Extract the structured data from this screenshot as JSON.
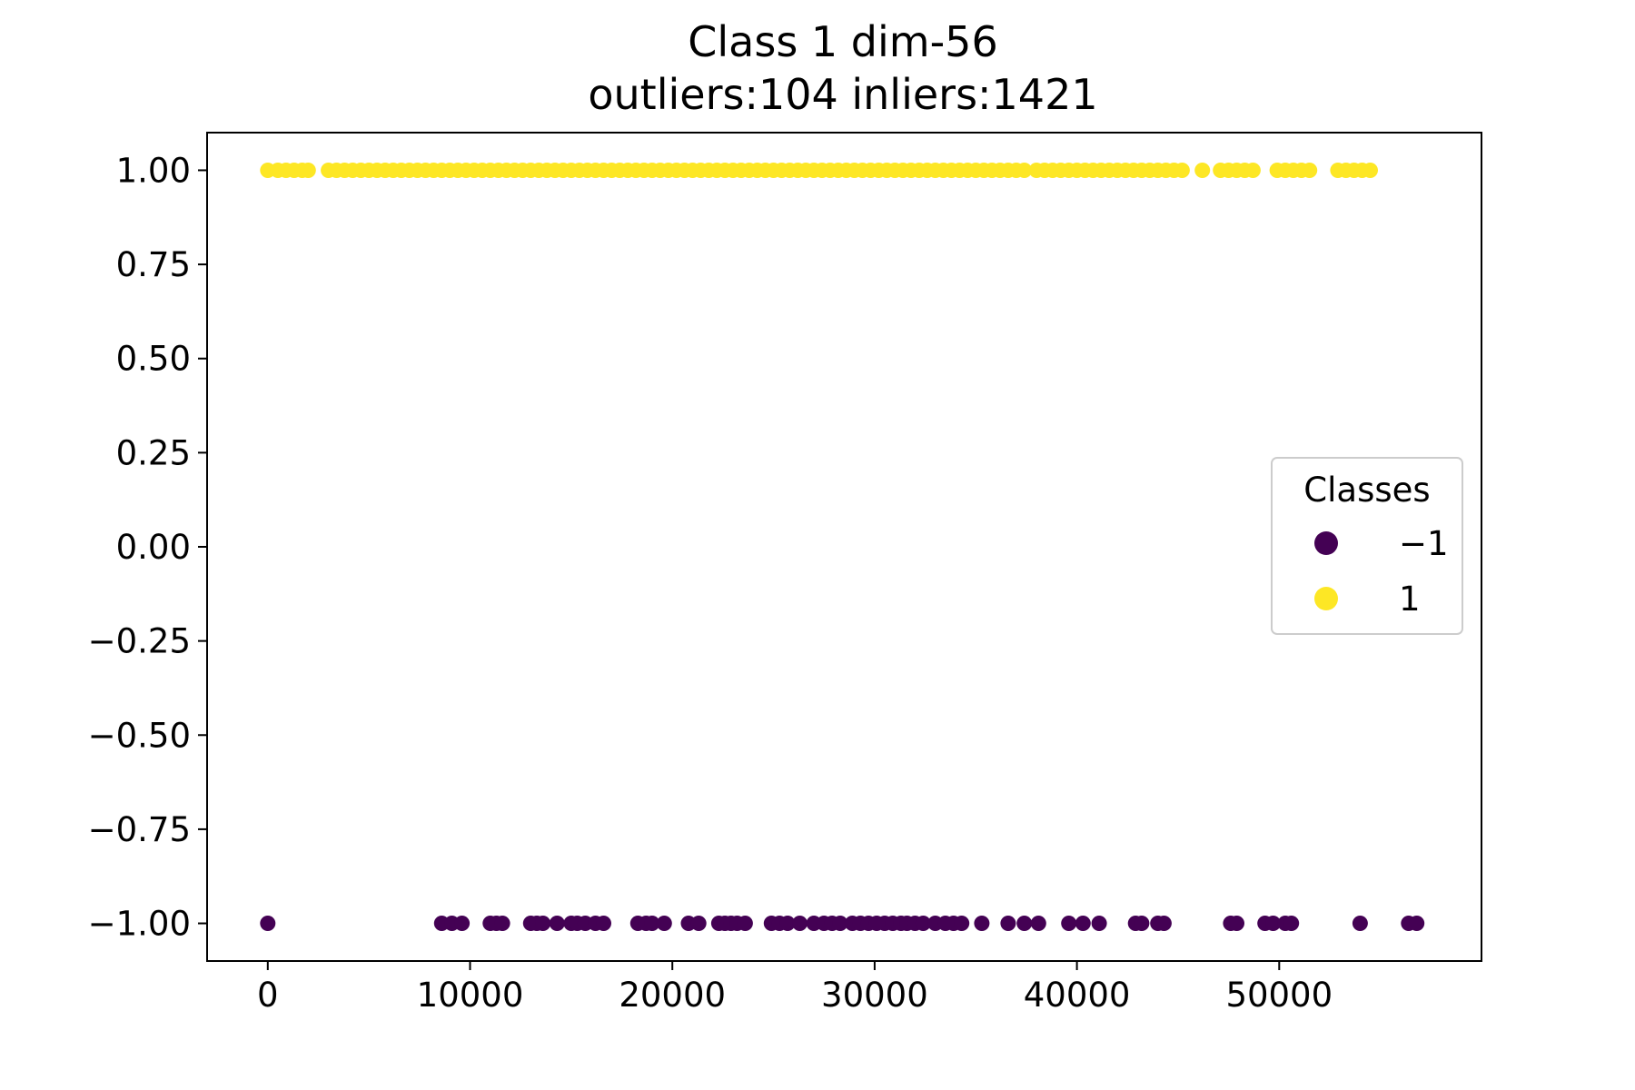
{
  "chart_data": {
    "type": "scatter",
    "title": "Class 1 dim-56",
    "subtitle": "outliers:104  inliers:1421",
    "xlabel": "",
    "ylabel": "",
    "xlim": [
      -3000,
      60000
    ],
    "ylim": [
      -1.1,
      1.1
    ],
    "x_ticks": [
      0,
      10000,
      20000,
      30000,
      40000,
      50000
    ],
    "x_tick_labels": [
      "0",
      "10000",
      "20000",
      "30000",
      "40000",
      "50000"
    ],
    "y_ticks": [
      1.0,
      0.75,
      0.5,
      0.25,
      0.0,
      -0.25,
      -0.5,
      -0.75,
      -1.0
    ],
    "y_tick_labels": [
      "1.00",
      "0.75",
      "0.50",
      "0.25",
      "0.00",
      "−0.25",
      "−0.50",
      "−0.75",
      "−1.00"
    ],
    "grid": false,
    "legend": {
      "title": "Classes",
      "placement": "center-right",
      "entries": [
        {
          "label": "−1",
          "color": "#440154"
        },
        {
          "label": "1",
          "color": "#fde725"
        }
      ]
    },
    "series": [
      {
        "name": "−1",
        "color": "#440154",
        "y": -1,
        "x": [
          0,
          8600,
          9100,
          9600,
          11000,
          11300,
          11600,
          13000,
          13300,
          13600,
          14300,
          15000,
          15300,
          15700,
          16200,
          16600,
          18300,
          18700,
          19000,
          19600,
          20800,
          21300,
          22300,
          22600,
          22900,
          23200,
          23600,
          24900,
          25300,
          25700,
          26300,
          27000,
          27500,
          27900,
          28300,
          28900,
          29300,
          29700,
          30100,
          30500,
          30900,
          31300,
          31600,
          32000,
          32400,
          33000,
          33500,
          33900,
          34300,
          35300,
          36600,
          37400,
          38100,
          39600,
          40300,
          41100,
          42900,
          43200,
          44000,
          44300,
          47600,
          47900,
          49300,
          49700,
          50300,
          50600,
          54000,
          56400,
          56800
        ]
      },
      {
        "name": "1",
        "color": "#fde725",
        "y": 1,
        "x": [
          0,
          500,
          900,
          1300,
          1700,
          2000,
          3000,
          3400,
          3800,
          4200,
          4600,
          5000,
          5400,
          5800,
          6200,
          6600,
          7000,
          7400,
          7800,
          8200,
          8600,
          9000,
          9400,
          9800,
          10200,
          10600,
          11000,
          11400,
          11800,
          12200,
          12600,
          13000,
          13400,
          13800,
          14200,
          14600,
          15000,
          15400,
          15800,
          16200,
          16600,
          17000,
          17400,
          17800,
          18200,
          18600,
          19000,
          19400,
          19800,
          20200,
          20600,
          21000,
          21400,
          21800,
          22200,
          22600,
          23000,
          23400,
          23800,
          24200,
          24600,
          25000,
          25400,
          25800,
          26200,
          26600,
          27000,
          27400,
          27800,
          28200,
          28600,
          29000,
          29400,
          29800,
          30200,
          30600,
          31000,
          31400,
          31800,
          32200,
          32600,
          33000,
          33400,
          33800,
          34200,
          34600,
          35000,
          35400,
          35800,
          36200,
          36600,
          37000,
          37400,
          38000,
          38400,
          38800,
          39200,
          39600,
          40000,
          40400,
          40800,
          41200,
          41600,
          42000,
          42400,
          42800,
          43200,
          43600,
          44000,
          44400,
          44800,
          45200,
          46200,
          47100,
          47500,
          47900,
          48300,
          48700,
          49900,
          50300,
          50700,
          51100,
          51500,
          52900,
          53300,
          53700,
          54100,
          54500
        ]
      }
    ]
  }
}
